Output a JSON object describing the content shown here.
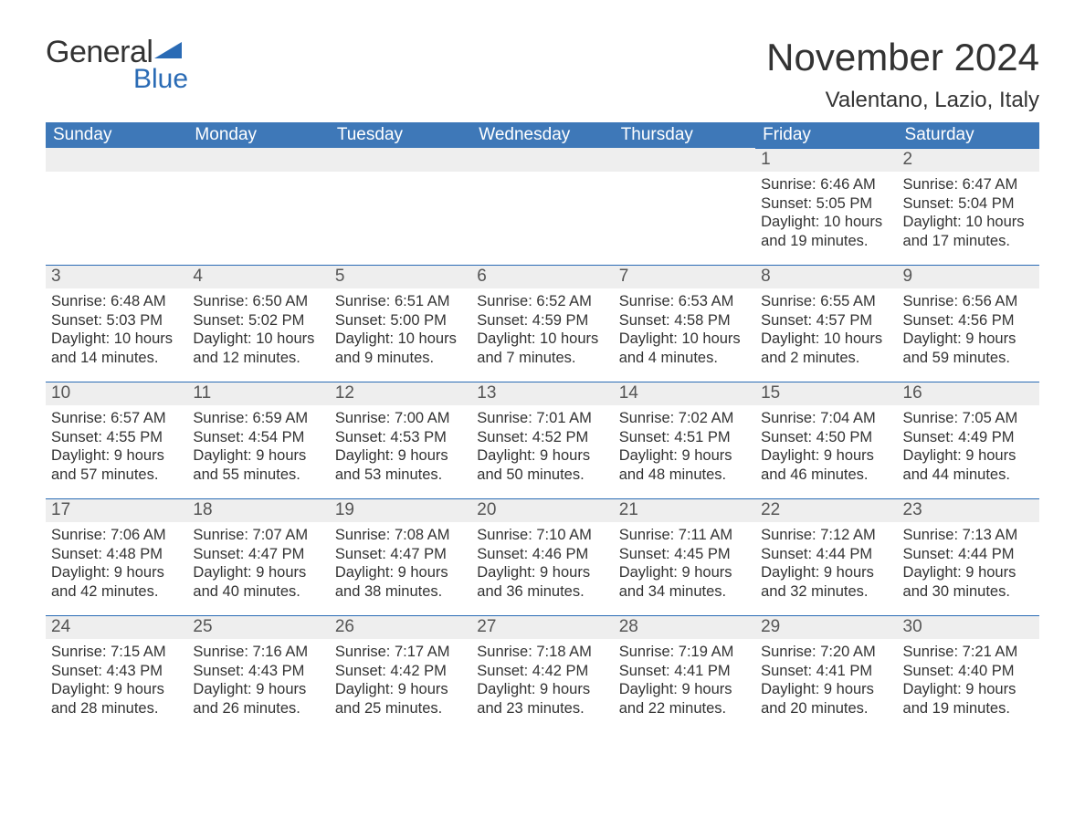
{
  "logo": {
    "text1": "General",
    "text2": "Blue"
  },
  "title": "November 2024",
  "location": "Valentano, Lazio, Italy",
  "colors": {
    "brand_blue": "#2a6bb5",
    "header_blue": "#3e78b8",
    "row_gray": "#eeeeee",
    "text": "#333333",
    "background": "#ffffff"
  },
  "fonts": {
    "family": "Segoe UI, Arial, sans-serif",
    "title_size_pt": 32,
    "location_size_pt": 18,
    "dayhead_size_pt": 14,
    "body_size_pt": 12
  },
  "day_names": [
    "Sunday",
    "Monday",
    "Tuesday",
    "Wednesday",
    "Thursday",
    "Friday",
    "Saturday"
  ],
  "labels": {
    "sunrise": "Sunrise:",
    "sunset": "Sunset:",
    "daylight": "Daylight:"
  },
  "weeks": [
    [
      null,
      null,
      null,
      null,
      null,
      {
        "n": "1",
        "sr": "6:46 AM",
        "ss": "5:05 PM",
        "dl1": "10 hours",
        "dl2": "and 19 minutes."
      },
      {
        "n": "2",
        "sr": "6:47 AM",
        "ss": "5:04 PM",
        "dl1": "10 hours",
        "dl2": "and 17 minutes."
      }
    ],
    [
      {
        "n": "3",
        "sr": "6:48 AM",
        "ss": "5:03 PM",
        "dl1": "10 hours",
        "dl2": "and 14 minutes."
      },
      {
        "n": "4",
        "sr": "6:50 AM",
        "ss": "5:02 PM",
        "dl1": "10 hours",
        "dl2": "and 12 minutes."
      },
      {
        "n": "5",
        "sr": "6:51 AM",
        "ss": "5:00 PM",
        "dl1": "10 hours",
        "dl2": "and 9 minutes."
      },
      {
        "n": "6",
        "sr": "6:52 AM",
        "ss": "4:59 PM",
        "dl1": "10 hours",
        "dl2": "and 7 minutes."
      },
      {
        "n": "7",
        "sr": "6:53 AM",
        "ss": "4:58 PM",
        "dl1": "10 hours",
        "dl2": "and 4 minutes."
      },
      {
        "n": "8",
        "sr": "6:55 AM",
        "ss": "4:57 PM",
        "dl1": "10 hours",
        "dl2": "and 2 minutes."
      },
      {
        "n": "9",
        "sr": "6:56 AM",
        "ss": "4:56 PM",
        "dl1": "9 hours",
        "dl2": "and 59 minutes."
      }
    ],
    [
      {
        "n": "10",
        "sr": "6:57 AM",
        "ss": "4:55 PM",
        "dl1": "9 hours",
        "dl2": "and 57 minutes."
      },
      {
        "n": "11",
        "sr": "6:59 AM",
        "ss": "4:54 PM",
        "dl1": "9 hours",
        "dl2": "and 55 minutes."
      },
      {
        "n": "12",
        "sr": "7:00 AM",
        "ss": "4:53 PM",
        "dl1": "9 hours",
        "dl2": "and 53 minutes."
      },
      {
        "n": "13",
        "sr": "7:01 AM",
        "ss": "4:52 PM",
        "dl1": "9 hours",
        "dl2": "and 50 minutes."
      },
      {
        "n": "14",
        "sr": "7:02 AM",
        "ss": "4:51 PM",
        "dl1": "9 hours",
        "dl2": "and 48 minutes."
      },
      {
        "n": "15",
        "sr": "7:04 AM",
        "ss": "4:50 PM",
        "dl1": "9 hours",
        "dl2": "and 46 minutes."
      },
      {
        "n": "16",
        "sr": "7:05 AM",
        "ss": "4:49 PM",
        "dl1": "9 hours",
        "dl2": "and 44 minutes."
      }
    ],
    [
      {
        "n": "17",
        "sr": "7:06 AM",
        "ss": "4:48 PM",
        "dl1": "9 hours",
        "dl2": "and 42 minutes."
      },
      {
        "n": "18",
        "sr": "7:07 AM",
        "ss": "4:47 PM",
        "dl1": "9 hours",
        "dl2": "and 40 minutes."
      },
      {
        "n": "19",
        "sr": "7:08 AM",
        "ss": "4:47 PM",
        "dl1": "9 hours",
        "dl2": "and 38 minutes."
      },
      {
        "n": "20",
        "sr": "7:10 AM",
        "ss": "4:46 PM",
        "dl1": "9 hours",
        "dl2": "and 36 minutes."
      },
      {
        "n": "21",
        "sr": "7:11 AM",
        "ss": "4:45 PM",
        "dl1": "9 hours",
        "dl2": "and 34 minutes."
      },
      {
        "n": "22",
        "sr": "7:12 AM",
        "ss": "4:44 PM",
        "dl1": "9 hours",
        "dl2": "and 32 minutes."
      },
      {
        "n": "23",
        "sr": "7:13 AM",
        "ss": "4:44 PM",
        "dl1": "9 hours",
        "dl2": "and 30 minutes."
      }
    ],
    [
      {
        "n": "24",
        "sr": "7:15 AM",
        "ss": "4:43 PM",
        "dl1": "9 hours",
        "dl2": "and 28 minutes."
      },
      {
        "n": "25",
        "sr": "7:16 AM",
        "ss": "4:43 PM",
        "dl1": "9 hours",
        "dl2": "and 26 minutes."
      },
      {
        "n": "26",
        "sr": "7:17 AM",
        "ss": "4:42 PM",
        "dl1": "9 hours",
        "dl2": "and 25 minutes."
      },
      {
        "n": "27",
        "sr": "7:18 AM",
        "ss": "4:42 PM",
        "dl1": "9 hours",
        "dl2": "and 23 minutes."
      },
      {
        "n": "28",
        "sr": "7:19 AM",
        "ss": "4:41 PM",
        "dl1": "9 hours",
        "dl2": "and 22 minutes."
      },
      {
        "n": "29",
        "sr": "7:20 AM",
        "ss": "4:41 PM",
        "dl1": "9 hours",
        "dl2": "and 20 minutes."
      },
      {
        "n": "30",
        "sr": "7:21 AM",
        "ss": "4:40 PM",
        "dl1": "9 hours",
        "dl2": "and 19 minutes."
      }
    ]
  ]
}
